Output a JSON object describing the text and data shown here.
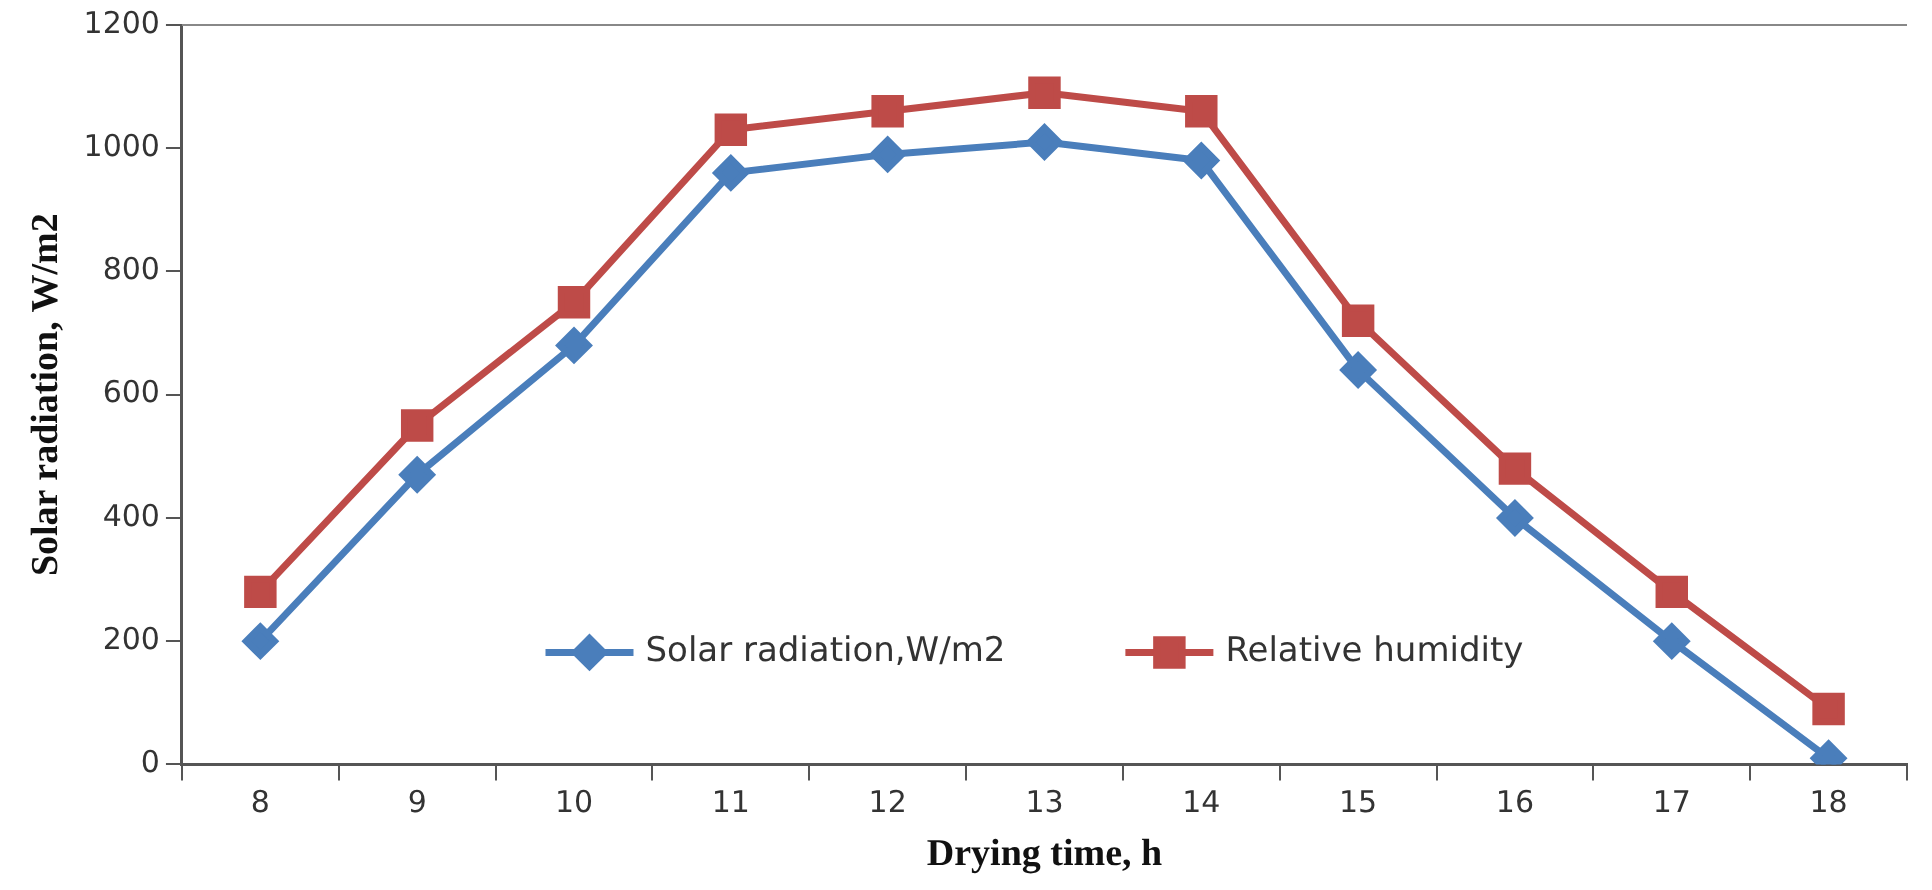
{
  "chart_data": {
    "type": "line",
    "xlabel": "Drying time, h",
    "ylabel": "Solar radiation, W/m2",
    "categories": [
      "8",
      "9",
      "10",
      "11",
      "12",
      "13",
      "14",
      "15",
      "16",
      "17",
      "18"
    ],
    "ylim": [
      0,
      1200
    ],
    "yticks": [
      0,
      200,
      400,
      600,
      800,
      1000,
      1200
    ],
    "grid": false,
    "legend": "bottom",
    "series": [
      {
        "name": "Solar radiation,W/m2",
        "color": "#4a7ebb",
        "marker": "diamond",
        "values": [
          200,
          470,
          680,
          960,
          990,
          1010,
          980,
          640,
          400,
          200,
          10
        ]
      },
      {
        "name": "Relative humidity",
        "color": "#be4b48",
        "marker": "square",
        "values": [
          280,
          550,
          750,
          1030,
          1060,
          1090,
          1060,
          720,
          480,
          280,
          90
        ]
      }
    ]
  }
}
